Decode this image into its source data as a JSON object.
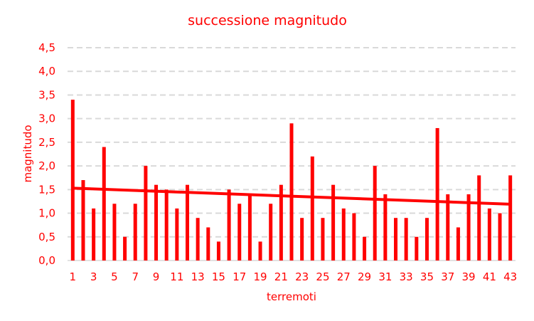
{
  "chart_data": {
    "type": "bar",
    "title": "successione magnitudo",
    "xlabel": "terremoti",
    "ylabel": "magnitudo",
    "ylim": [
      0,
      4.5
    ],
    "y_ticks": [
      "0,0",
      "0,5",
      "1,0",
      "1,5",
      "2,0",
      "2,5",
      "3,0",
      "3,5",
      "4,0",
      "4,5"
    ],
    "x_tick_labels": [
      "1",
      "3",
      "5",
      "7",
      "9",
      "11",
      "13",
      "15",
      "17",
      "19",
      "21",
      "23",
      "25",
      "27",
      "29",
      "31",
      "33",
      "35",
      "37",
      "39",
      "41",
      "43"
    ],
    "categories": [
      1,
      2,
      3,
      4,
      5,
      6,
      7,
      8,
      9,
      10,
      11,
      12,
      13,
      14,
      15,
      16,
      17,
      18,
      19,
      20,
      21,
      22,
      23,
      24,
      25,
      26,
      27,
      28,
      29,
      30,
      31,
      32,
      33,
      34,
      35,
      36,
      37,
      38,
      39,
      40,
      41,
      42,
      43
    ],
    "values": [
      3.4,
      1.7,
      1.1,
      2.4,
      1.2,
      0.5,
      1.2,
      2.0,
      1.6,
      1.5,
      1.1,
      1.6,
      0.9,
      0.7,
      0.4,
      1.5,
      1.2,
      1.4,
      0.4,
      1.2,
      1.6,
      2.9,
      0.9,
      2.2,
      0.9,
      1.6,
      1.1,
      1.0,
      0.5,
      2.0,
      1.4,
      0.9,
      0.9,
      0.5,
      0.9,
      2.8,
      1.4,
      0.7,
      1.4,
      1.8,
      1.1,
      1.0,
      1.8
    ],
    "trendline": {
      "type": "linear",
      "start": 1.53,
      "end": 1.19
    },
    "grid": true,
    "legend": "none",
    "colors": {
      "series": "#ff0000",
      "text": "#ff0000",
      "grid": "#d9d9d9"
    }
  }
}
